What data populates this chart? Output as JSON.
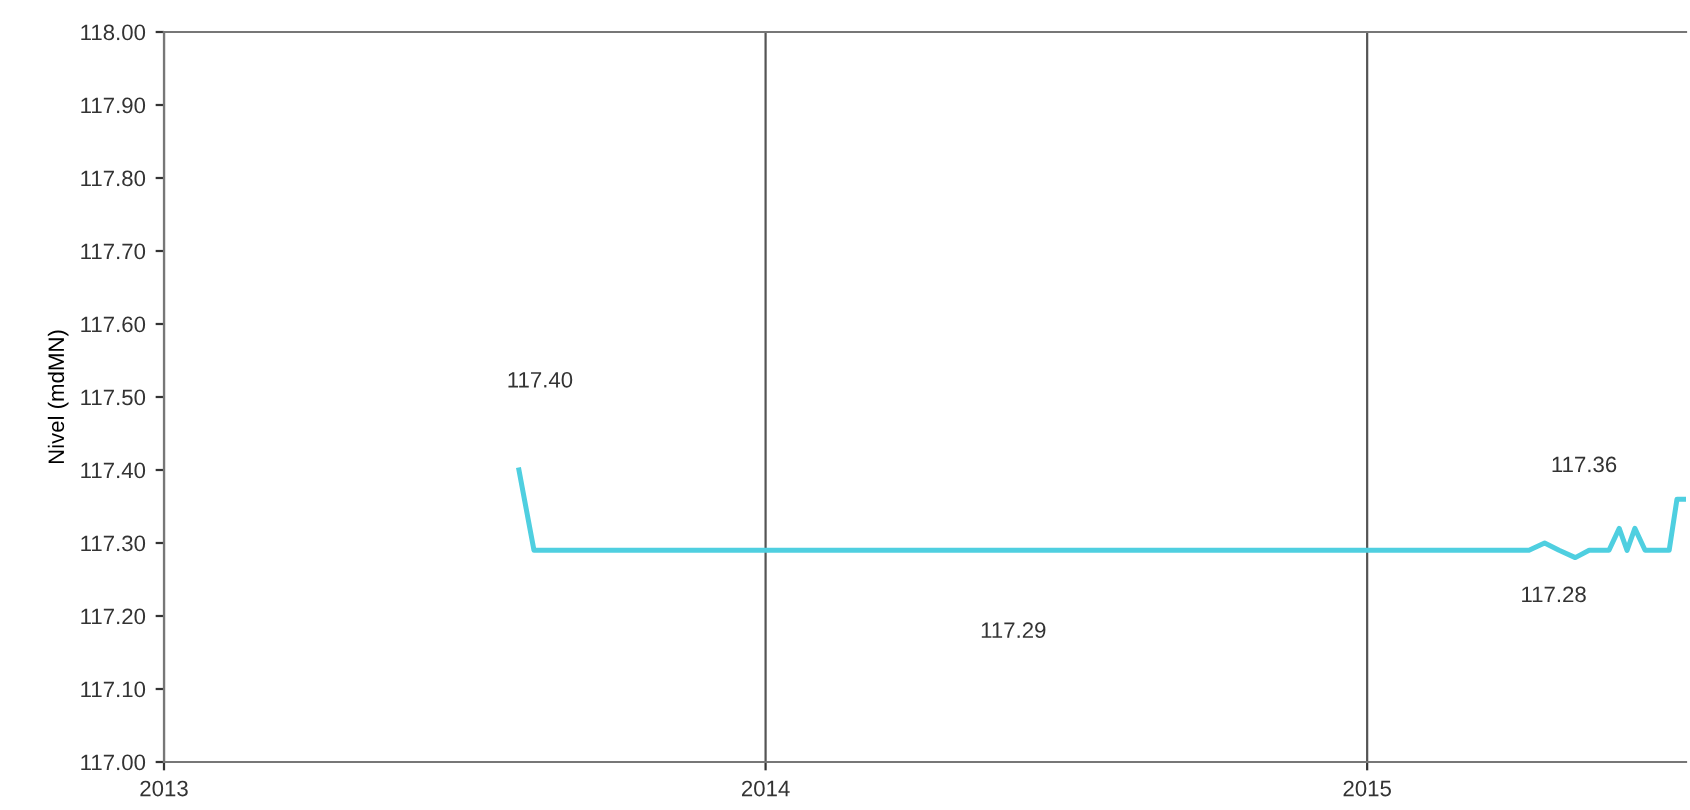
{
  "chart_data": {
    "type": "line",
    "ylabel": "Nivel (mdMN)",
    "series": [
      {
        "color": "#4fcfe0",
        "x": [
          2013.59,
          2013.615,
          2015.269,
          2015.295,
          2015.319,
          2015.346,
          2015.369,
          2015.402,
          2015.419,
          2015.432,
          2015.445,
          2015.462,
          2015.502,
          2015.515,
          2015.528
        ],
        "values": [
          117.4,
          117.29,
          117.29,
          117.3,
          117.29,
          117.28,
          117.29,
          117.29,
          117.32,
          117.29,
          117.32,
          117.29,
          117.29,
          117.36,
          117.36
        ]
      }
    ],
    "xlim": [
      2013,
      2015.53
    ],
    "xticks": [
      2013,
      2014,
      2015
    ],
    "ylim": [
      117.0,
      118.0
    ],
    "yticks": [
      {
        "value": 117.0,
        "label": "117.00"
      },
      {
        "value": 117.1,
        "label": "117.10"
      },
      {
        "value": 117.2,
        "label": "117.20"
      },
      {
        "value": 117.3,
        "label": "117.30"
      },
      {
        "value": 117.4,
        "label": "117.40"
      },
      {
        "value": 117.5,
        "label": "117.50"
      },
      {
        "value": 117.6,
        "label": "117.60"
      },
      {
        "value": 117.7,
        "label": "117.70"
      },
      {
        "value": 117.8,
        "label": "117.80"
      },
      {
        "value": 117.9,
        "label": "117.90"
      },
      {
        "value": 118.0,
        "label": "118.00"
      }
    ],
    "grid": "x",
    "legend": false,
    "marker": "none",
    "line_style": "solid",
    "annotations": [
      "117.40",
      "117.29",
      "117.36",
      "117.28"
    ]
  }
}
